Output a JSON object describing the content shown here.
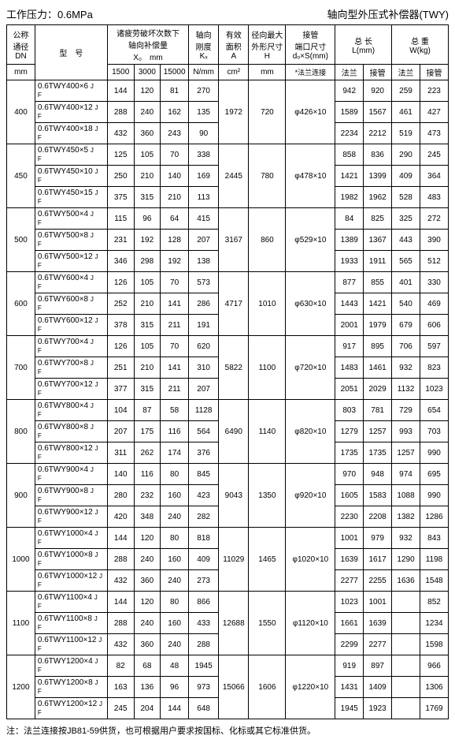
{
  "header": {
    "left": "工作压力：0.6MPa",
    "right": "轴向型外压式补偿器(TWY)"
  },
  "columns": {
    "dn": {
      "l1": "公称",
      "l2": "通径",
      "l3": "DN",
      "l4": "mm"
    },
    "model": "型　号",
    "comp": {
      "l1": "诸疲劳破坏次数下",
      "l2": "轴向补偿量",
      "l3": "X₀　mm",
      "s1": "1500",
      "s2": "3000",
      "s3": "15000"
    },
    "stiff": {
      "l1": "轴向",
      "l2": "刚度",
      "l3": "Kₓ",
      "l4": "N/mm"
    },
    "area": {
      "l1": "有效",
      "l2": "面积",
      "l3": "A",
      "l4": "cm²"
    },
    "outer": {
      "l1": "径向最大",
      "l2": "外形尺寸",
      "l3": "H",
      "l4": "mm"
    },
    "pipe": {
      "l1": "接管",
      "l2": "端口尺寸",
      "l3": "dₒ×S(mm)",
      "l4": "*法兰连接"
    },
    "len": {
      "l1": "总 长",
      "l2": "L(mm)",
      "s1": "法兰",
      "s2": "接管"
    },
    "wt": {
      "l1": "总 重",
      "l2": "W(kg)",
      "s1": "法兰",
      "s2": "接管"
    }
  },
  "groups": [
    {
      "dn": "400",
      "area": "1972",
      "outer": "720",
      "pipe": "φ426×10",
      "rows": [
        {
          "m": "0.6TWY400×6",
          "x1": "144",
          "x2": "120",
          "x3": "81",
          "k": "270",
          "lf": "942",
          "lp": "920",
          "wf": "259",
          "wp": "223"
        },
        {
          "m": "0.6TWY400×12",
          "x1": "288",
          "x2": "240",
          "x3": "162",
          "k": "135",
          "lf": "1589",
          "lp": "1567",
          "wf": "461",
          "wp": "427"
        },
        {
          "m": "0.6TWY400×18",
          "x1": "432",
          "x2": "360",
          "x3": "243",
          "k": "90",
          "lf": "2234",
          "lp": "2212",
          "wf": "519",
          "wp": "473"
        }
      ]
    },
    {
      "dn": "450",
      "area": "2445",
      "outer": "780",
      "pipe": "φ478×10",
      "rows": [
        {
          "m": "0.6TWY450×5",
          "x1": "125",
          "x2": "105",
          "x3": "70",
          "k": "338",
          "lf": "858",
          "lp": "836",
          "wf": "290",
          "wp": "245"
        },
        {
          "m": "0.6TWY450×10",
          "x1": "250",
          "x2": "210",
          "x3": "140",
          "k": "169",
          "lf": "1421",
          "lp": "1399",
          "wf": "409",
          "wp": "364"
        },
        {
          "m": "0.6TWY450×15",
          "x1": "375",
          "x2": "315",
          "x3": "210",
          "k": "113",
          "lf": "1982",
          "lp": "1962",
          "wf": "528",
          "wp": "483"
        }
      ]
    },
    {
      "dn": "500",
      "area": "3167",
      "outer": "860",
      "pipe": "φ529×10",
      "rows": [
        {
          "m": "0.6TWY500×4",
          "x1": "115",
          "x2": "96",
          "x3": "64",
          "k": "415",
          "lf": "84",
          "lp": "825",
          "wf": "325",
          "wp": "272"
        },
        {
          "m": "0.6TWY500×8",
          "x1": "231",
          "x2": "192",
          "x3": "128",
          "k": "207",
          "lf": "1389",
          "lp": "1367",
          "wf": "443",
          "wp": "390"
        },
        {
          "m": "0.6TWY500×12",
          "x1": "346",
          "x2": "298",
          "x3": "192",
          "k": "138",
          "lf": "1933",
          "lp": "1911",
          "wf": "565",
          "wp": "512"
        }
      ]
    },
    {
      "dn": "600",
      "area": "4717",
      "outer": "1010",
      "pipe": "φ630×10",
      "rows": [
        {
          "m": "0.6TWY600×4",
          "x1": "126",
          "x2": "105",
          "x3": "70",
          "k": "573",
          "lf": "877",
          "lp": "855",
          "wf": "401",
          "wp": "330"
        },
        {
          "m": "0.6TWY600×8",
          "x1": "252",
          "x2": "210",
          "x3": "141",
          "k": "286",
          "lf": "1443",
          "lp": "1421",
          "wf": "540",
          "wp": "469"
        },
        {
          "m": "0.6TWY600×12",
          "x1": "378",
          "x2": "315",
          "x3": "211",
          "k": "191",
          "lf": "2001",
          "lp": "1979",
          "wf": "679",
          "wp": "606"
        }
      ]
    },
    {
      "dn": "700",
      "area": "5822",
      "outer": "1100",
      "pipe": "φ720×10",
      "rows": [
        {
          "m": "0.6TWY700×4",
          "x1": "126",
          "x2": "105",
          "x3": "70",
          "k": "620",
          "lf": "917",
          "lp": "895",
          "wf": "706",
          "wp": "597"
        },
        {
          "m": "0.6TWY700×8",
          "x1": "251",
          "x2": "210",
          "x3": "141",
          "k": "310",
          "lf": "1483",
          "lp": "1461",
          "wf": "932",
          "wp": "823"
        },
        {
          "m": "0.6TWY700×12",
          "x1": "377",
          "x2": "315",
          "x3": "211",
          "k": "207",
          "lf": "2051",
          "lp": "2029",
          "wf": "1132",
          "wp": "1023"
        }
      ]
    },
    {
      "dn": "800",
      "area": "6490",
      "outer": "1140",
      "pipe": "φ820×10",
      "rows": [
        {
          "m": "0.6TWY800×4",
          "x1": "104",
          "x2": "87",
          "x3": "58",
          "k": "1128",
          "lf": "803",
          "lp": "781",
          "wf": "729",
          "wp": "654"
        },
        {
          "m": "0.6TWY800×8",
          "x1": "207",
          "x2": "175",
          "x3": "116",
          "k": "564",
          "lf": "1279",
          "lp": "1257",
          "wf": "993",
          "wp": "703"
        },
        {
          "m": "0.6TWY800×12",
          "x1": "311",
          "x2": "262",
          "x3": "174",
          "k": "376",
          "lf": "1735",
          "lp": "1735",
          "wf": "1257",
          "wp": "990"
        }
      ]
    },
    {
      "dn": "900",
      "area": "9043",
      "outer": "1350",
      "pipe": "φ920×10",
      "rows": [
        {
          "m": "0.6TWY900×4",
          "x1": "140",
          "x2": "116",
          "x3": "80",
          "k": "845",
          "lf": "970",
          "lp": "948",
          "wf": "974",
          "wp": "695"
        },
        {
          "m": "0.6TWY900×8",
          "x1": "280",
          "x2": "232",
          "x3": "160",
          "k": "423",
          "lf": "1605",
          "lp": "1583",
          "wf": "1088",
          "wp": "990"
        },
        {
          "m": "0.6TWY900×12",
          "x1": "420",
          "x2": "348",
          "x3": "240",
          "k": "282",
          "lf": "2230",
          "lp": "2208",
          "wf": "1382",
          "wp": "1286"
        }
      ]
    },
    {
      "dn": "1000",
      "area": "11029",
      "outer": "1465",
      "pipe": "φ1020×10",
      "rows": [
        {
          "m": "0.6TWY1000×4",
          "x1": "144",
          "x2": "120",
          "x3": "80",
          "k": "818",
          "lf": "1001",
          "lp": "979",
          "wf": "932",
          "wp": "843"
        },
        {
          "m": "0.6TWY1000×8",
          "x1": "288",
          "x2": "240",
          "x3": "160",
          "k": "409",
          "lf": "1639",
          "lp": "1617",
          "wf": "1290",
          "wp": "1198"
        },
        {
          "m": "0.6TWY1000×12",
          "x1": "432",
          "x2": "360",
          "x3": "240",
          "k": "273",
          "lf": "2277",
          "lp": "2255",
          "wf": "1636",
          "wp": "1548"
        }
      ]
    },
    {
      "dn": "1100",
      "area": "12688",
      "outer": "1550",
      "pipe": "φ1120×10",
      "rows": [
        {
          "m": "0.6TWY1100×4",
          "x1": "144",
          "x2": "120",
          "x3": "80",
          "k": "866",
          "lf": "1023",
          "lp": "1001",
          "wf": "",
          "wp": "852"
        },
        {
          "m": "0.6TWY1100×8",
          "x1": "288",
          "x2": "240",
          "x3": "160",
          "k": "433",
          "lf": "1661",
          "lp": "1639",
          "wf": "",
          "wp": "1234"
        },
        {
          "m": "0.6TWY1100×12",
          "x1": "432",
          "x2": "360",
          "x3": "240",
          "k": "288",
          "lf": "2299",
          "lp": "2277",
          "wf": "",
          "wp": "1598"
        }
      ]
    },
    {
      "dn": "1200",
      "area": "15066",
      "outer": "1606",
      "pipe": "φ1220×10",
      "rows": [
        {
          "m": "0.6TWY1200×4",
          "x1": "82",
          "x2": "68",
          "x3": "48",
          "k": "1945",
          "lf": "919",
          "lp": "897",
          "wf": "",
          "wp": "966"
        },
        {
          "m": "0.6TWY1200×8",
          "x1": "163",
          "x2": "136",
          "x3": "96",
          "k": "973",
          "lf": "1431",
          "lp": "1409",
          "wf": "",
          "wp": "1306"
        },
        {
          "m": "0.6TWY1200×12",
          "x1": "245",
          "x2": "204",
          "x3": "144",
          "k": "648",
          "lf": "1945",
          "lp": "1923",
          "wf": "",
          "wp": "1769"
        }
      ]
    }
  ],
  "note": "注：法兰连接按JB81-59供货，也可根据用户要求按国标、化标或其它标准供货。"
}
